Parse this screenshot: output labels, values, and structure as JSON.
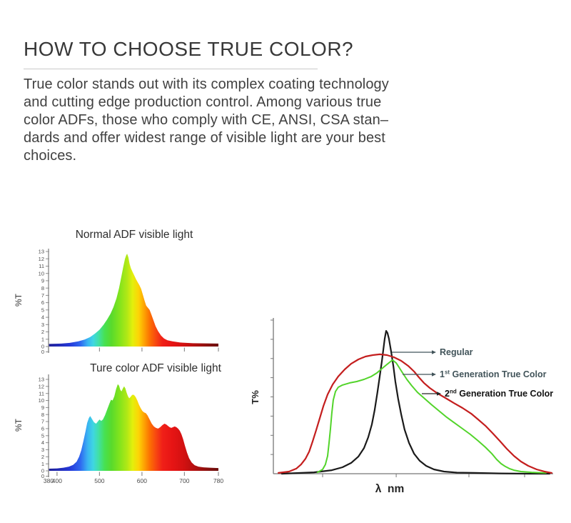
{
  "header": {
    "title": "HOW TO CHOOSE TRUE COLOR?",
    "paragraph": "True color stands out with its complex coating technology\nand cutting edge production control. Among various true\ncolor ADFs, those who comply with CE, ANSI, CSA stan–\ndards and offer widest range of visible light are your best\nchoices."
  },
  "colors": {
    "axis": "#8f8f8f",
    "tick_label": "#4a4a4a",
    "chart_title": "#2e2e2e",
    "legend_gray": "#42545a",
    "regular_curve": "#1a1a1a",
    "gen1_curve": "#52d42a",
    "gen2_curve": "#c41e1e"
  },
  "spectrum_gradient": [
    {
      "wl": 380,
      "color": "#1f1f96"
    },
    {
      "wl": 430,
      "color": "#2438d8"
    },
    {
      "wl": 455,
      "color": "#2f68f0"
    },
    {
      "wl": 472,
      "color": "#39b4f2"
    },
    {
      "wl": 485,
      "color": "#3fd6e2"
    },
    {
      "wl": 497,
      "color": "#41e0a8"
    },
    {
      "wl": 512,
      "color": "#47e152"
    },
    {
      "wl": 528,
      "color": "#58da2c"
    },
    {
      "wl": 548,
      "color": "#84e41c"
    },
    {
      "wl": 565,
      "color": "#b2e816"
    },
    {
      "wl": 578,
      "color": "#e3ef0c"
    },
    {
      "wl": 592,
      "color": "#fdd406"
    },
    {
      "wl": 605,
      "color": "#fda303"
    },
    {
      "wl": 618,
      "color": "#fc7202"
    },
    {
      "wl": 632,
      "color": "#f84a10"
    },
    {
      "wl": 648,
      "color": "#f02018"
    },
    {
      "wl": 672,
      "color": "#e61414"
    },
    {
      "wl": 700,
      "color": "#d11111"
    },
    {
      "wl": 730,
      "color": "#ab100f"
    },
    {
      "wl": 758,
      "color": "#84100e"
    },
    {
      "wl": 780,
      "color": "#6b0f0d"
    }
  ],
  "chart_data": [
    {
      "id": "normal-adf",
      "type": "area",
      "title": "Normal ADF visible light",
      "ylabel": "%T",
      "xlabel": "",
      "xlim": [
        380,
        780
      ],
      "ylim": [
        0,
        13
      ],
      "y_ticks": [
        13,
        12,
        11,
        10,
        9,
        8,
        7,
        6,
        5,
        4,
        3,
        2,
        1,
        0,
        0
      ],
      "x_ticks": [
        380,
        500,
        600,
        700,
        780
      ],
      "x_labels_shown": false,
      "points": [
        [
          380,
          0.35
        ],
        [
          410,
          0.4
        ],
        [
          430,
          0.5
        ],
        [
          450,
          0.7
        ],
        [
          465,
          0.95
        ],
        [
          478,
          1.3
        ],
        [
          490,
          1.8
        ],
        [
          500,
          2.3
        ],
        [
          510,
          3.0
        ],
        [
          518,
          3.7
        ],
        [
          526,
          4.5
        ],
        [
          533,
          5.4
        ],
        [
          540,
          6.6
        ],
        [
          546,
          8.0
        ],
        [
          551,
          9.4
        ],
        [
          556,
          10.9
        ],
        [
          560,
          12.0
        ],
        [
          563,
          12.5
        ],
        [
          565,
          12.7
        ],
        [
          568,
          12.2
        ],
        [
          571,
          11.3
        ],
        [
          574,
          10.7
        ],
        [
          578,
          10.2
        ],
        [
          582,
          9.7
        ],
        [
          586,
          9.2
        ],
        [
          590,
          8.8
        ],
        [
          594,
          8.4
        ],
        [
          598,
          7.9
        ],
        [
          602,
          7.1
        ],
        [
          606,
          6.3
        ],
        [
          610,
          5.6
        ],
        [
          614,
          5.3
        ],
        [
          618,
          5.0
        ],
        [
          622,
          4.4
        ],
        [
          627,
          3.6
        ],
        [
          632,
          2.8
        ],
        [
          638,
          2.1
        ],
        [
          645,
          1.5
        ],
        [
          652,
          1.1
        ],
        [
          660,
          0.85
        ],
        [
          672,
          0.7
        ],
        [
          690,
          0.55
        ],
        [
          720,
          0.45
        ],
        [
          780,
          0.4
        ]
      ]
    },
    {
      "id": "ture-color-adf",
      "type": "area",
      "title": "Ture color ADF visible light",
      "ylabel": "%T",
      "xlabel": "",
      "xlim": [
        380,
        780
      ],
      "ylim": [
        0,
        13
      ],
      "y_ticks": [
        13,
        12,
        11,
        10,
        9,
        8,
        7,
        6,
        5,
        4,
        3,
        2,
        1,
        0,
        0
      ],
      "x_ticks": [
        380,
        400,
        500,
        600,
        700,
        780
      ],
      "x_labels_shown": true,
      "points": [
        [
          380,
          0.3
        ],
        [
          400,
          0.35
        ],
        [
          415,
          0.45
        ],
        [
          428,
          0.6
        ],
        [
          438,
          0.85
        ],
        [
          446,
          1.3
        ],
        [
          452,
          2.0
        ],
        [
          457,
          2.9
        ],
        [
          462,
          4.2
        ],
        [
          467,
          5.6
        ],
        [
          471,
          6.8
        ],
        [
          475,
          7.5
        ],
        [
          478,
          7.8
        ],
        [
          482,
          7.4
        ],
        [
          487,
          6.9
        ],
        [
          492,
          6.7
        ],
        [
          496,
          7.0
        ],
        [
          500,
          7.3
        ],
        [
          504,
          7.1
        ],
        [
          508,
          7.3
        ],
        [
          513,
          7.9
        ],
        [
          518,
          8.7
        ],
        [
          523,
          9.5
        ],
        [
          527,
          10.1
        ],
        [
          531,
          10.0
        ],
        [
          535,
          10.6
        ],
        [
          539,
          11.6
        ],
        [
          543,
          12.3
        ],
        [
          546,
          12.1
        ],
        [
          549,
          11.5
        ],
        [
          552,
          11.3
        ],
        [
          555,
          11.7
        ],
        [
          558,
          12.0
        ],
        [
          561,
          11.7
        ],
        [
          564,
          11.1
        ],
        [
          567,
          10.6
        ],
        [
          570,
          10.3
        ],
        [
          573,
          10.5
        ],
        [
          577,
          10.8
        ],
        [
          581,
          10.8
        ],
        [
          585,
          10.5
        ],
        [
          589,
          10.0
        ],
        [
          593,
          9.4
        ],
        [
          597,
          8.9
        ],
        [
          601,
          8.5
        ],
        [
          605,
          8.3
        ],
        [
          609,
          8.2
        ],
        [
          613,
          7.9
        ],
        [
          618,
          7.3
        ],
        [
          623,
          6.7
        ],
        [
          628,
          6.3
        ],
        [
          633,
          6.1
        ],
        [
          638,
          6.0
        ],
        [
          643,
          6.2
        ],
        [
          648,
          6.5
        ],
        [
          653,
          6.7
        ],
        [
          657,
          6.6
        ],
        [
          661,
          6.4
        ],
        [
          665,
          6.2
        ],
        [
          669,
          6.1
        ],
        [
          673,
          6.2
        ],
        [
          677,
          6.3
        ],
        [
          681,
          6.2
        ],
        [
          685,
          6.0
        ],
        [
          689,
          5.7
        ],
        [
          693,
          5.2
        ],
        [
          697,
          4.5
        ],
        [
          701,
          3.6
        ],
        [
          706,
          2.6
        ],
        [
          711,
          1.8
        ],
        [
          717,
          1.2
        ],
        [
          724,
          0.8
        ],
        [
          733,
          0.6
        ],
        [
          745,
          0.5
        ],
        [
          760,
          0.45
        ],
        [
          780,
          0.4
        ]
      ]
    },
    {
      "id": "true-color-comparison",
      "type": "line",
      "title": "",
      "ylabel": "T%",
      "xlabel": "λ  nm",
      "x_range_relative": [
        0,
        100
      ],
      "y_range_relative": [
        0,
        100
      ],
      "y_tick_count": 8,
      "x_ticks_relative": [
        17.6,
        43.9,
        69.9,
        89.8
      ],
      "series": [
        {
          "name": "Regular",
          "color_key": "regular_curve",
          "points": [
            [
              3,
              0
            ],
            [
              14.5,
              0.9
            ],
            [
              20.9,
              2.3
            ],
            [
              24.7,
              4.2
            ],
            [
              27.8,
              7
            ],
            [
              30.4,
              11.2
            ],
            [
              32.4,
              16.7
            ],
            [
              33.9,
              23.7
            ],
            [
              35.2,
              32.1
            ],
            [
              36.2,
              41.4
            ],
            [
              37.2,
              53
            ],
            [
              38,
              63.3
            ],
            [
              38.8,
              73.5
            ],
            [
              39.3,
              80.9
            ],
            [
              39.8,
              87.9
            ],
            [
              40.3,
              93
            ],
            [
              40.8,
              91.6
            ],
            [
              41.3,
              87.9
            ],
            [
              42.1,
              79.5
            ],
            [
              42.9,
              69.8
            ],
            [
              43.6,
              60
            ],
            [
              44.6,
              48.8
            ],
            [
              45.7,
              38.6
            ],
            [
              46.9,
              28.8
            ],
            [
              48.5,
              20
            ],
            [
              50.3,
              13
            ],
            [
              52.3,
              8.4
            ],
            [
              54.6,
              5.1
            ],
            [
              57.4,
              2.8
            ],
            [
              61,
              1.4
            ],
            [
              65.6,
              0.7
            ],
            [
              71.9,
              0.5
            ],
            [
              80.9,
              0.2
            ],
            [
              91.1,
              0
            ],
            [
              98.7,
              0
            ]
          ]
        },
        {
          "name": "1st Generation True Color",
          "color_key": "gen1_curve",
          "points": [
            [
              15.8,
              0.9
            ],
            [
              17.6,
              2.8
            ],
            [
              18.6,
              6
            ],
            [
              19.4,
              11.6
            ],
            [
              19.9,
              20
            ],
            [
              20.4,
              29.3
            ],
            [
              20.9,
              39.5
            ],
            [
              21.4,
              47.9
            ],
            [
              22.2,
              53.5
            ],
            [
              23.2,
              56.3
            ],
            [
              24.7,
              57.7
            ],
            [
              27.3,
              59.1
            ],
            [
              29.8,
              60
            ],
            [
              32.4,
              61.4
            ],
            [
              35,
              63.3
            ],
            [
              37,
              65.6
            ],
            [
              38.8,
              68.4
            ],
            [
              40.3,
              70.7
            ],
            [
              41.6,
              72.6
            ],
            [
              42.6,
              74
            ],
            [
              43.9,
              72.1
            ],
            [
              44.9,
              69.3
            ],
            [
              46.2,
              65.6
            ],
            [
              47.7,
              61.4
            ],
            [
              49.5,
              57.2
            ],
            [
              51.5,
              53
            ],
            [
              53.8,
              49.3
            ],
            [
              56.4,
              45.1
            ],
            [
              59.2,
              40.9
            ],
            [
              62,
              36.7
            ],
            [
              64.8,
              33
            ],
            [
              67.6,
              29.3
            ],
            [
              70.4,
              25.6
            ],
            [
              73.2,
              21.4
            ],
            [
              75.8,
              17.2
            ],
            [
              78.1,
              13
            ],
            [
              79.8,
              9.3
            ],
            [
              81.4,
              6.5
            ],
            [
              82.9,
              4.7
            ],
            [
              84.4,
              3.3
            ],
            [
              86,
              2.3
            ],
            [
              88.5,
              1.4
            ],
            [
              92.3,
              0.9
            ],
            [
              97.4,
              0.5
            ]
          ]
        },
        {
          "name": "2nd Generation True Color",
          "color_key": "gen2_curve",
          "points": [
            [
              1.8,
              0.5
            ],
            [
              5.6,
              1.4
            ],
            [
              8.2,
              3.3
            ],
            [
              9.9,
              6
            ],
            [
              11.5,
              9.8
            ],
            [
              12.8,
              14.4
            ],
            [
              14,
              20.9
            ],
            [
              15.3,
              28.4
            ],
            [
              16.6,
              36.3
            ],
            [
              17.9,
              44.2
            ],
            [
              19.4,
              51.6
            ],
            [
              21.2,
              58.1
            ],
            [
              23.2,
              63.3
            ],
            [
              25.5,
              67.9
            ],
            [
              27.8,
              71.6
            ],
            [
              30.4,
              74.4
            ],
            [
              32.9,
              76.3
            ],
            [
              35.5,
              77.2
            ],
            [
              38,
              77.7
            ],
            [
              40.6,
              77.2
            ],
            [
              43.1,
              75.8
            ],
            [
              45.7,
              73.5
            ],
            [
              48.2,
              70.2
            ],
            [
              50.3,
              66.5
            ],
            [
              52,
              62.8
            ],
            [
              53.8,
              59.1
            ],
            [
              55.9,
              55.8
            ],
            [
              58.4,
              52.6
            ],
            [
              61.5,
              49.3
            ],
            [
              64.5,
              46
            ],
            [
              67.6,
              42.8
            ],
            [
              70.7,
              39.1
            ],
            [
              73.2,
              35.3
            ],
            [
              75.8,
              31.2
            ],
            [
              78.3,
              26.5
            ],
            [
              80.9,
              21.4
            ],
            [
              83.4,
              16.3
            ],
            [
              86,
              11.6
            ],
            [
              88.5,
              7.9
            ],
            [
              91.1,
              5.1
            ],
            [
              94.1,
              2.8
            ],
            [
              96.9,
              1.4
            ],
            [
              99.5,
              0.5
            ]
          ]
        }
      ],
      "legend": [
        {
          "pre": "Regular",
          "sup": "",
          "post": "",
          "color": "#42545a",
          "bold": false
        },
        {
          "pre": "1",
          "sup": "st",
          "post": " Generation True Color",
          "color": "#42545a",
          "bold": false
        },
        {
          "pre": "2",
          "sup": "nd",
          "post": " Generation True Color",
          "color": "#111111",
          "bold": true
        }
      ],
      "legend_position": "right"
    }
  ]
}
